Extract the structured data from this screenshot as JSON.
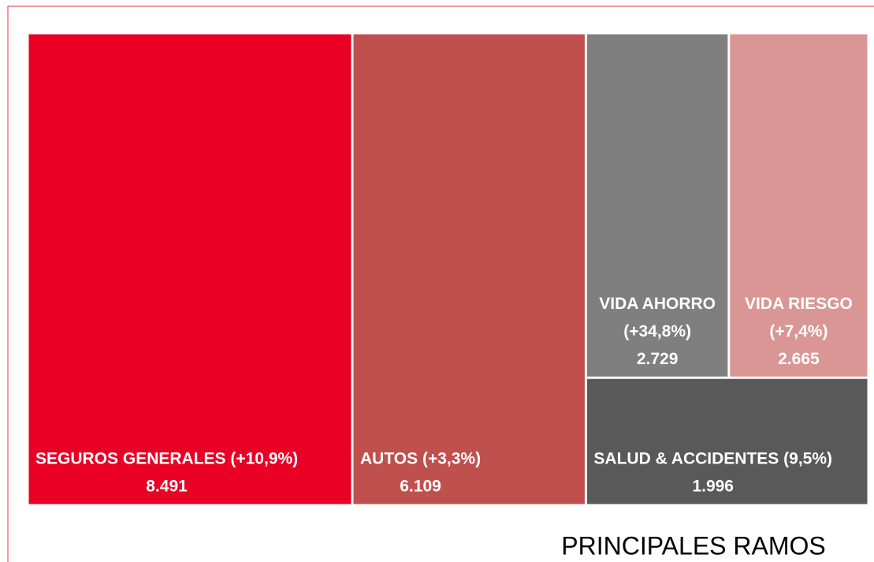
{
  "chart_data": {
    "type": "treemap",
    "title": "PRINCIPALES RAMOS",
    "categories": [
      "SEGUROS GENERALES (+10,9%)",
      "AUTOS (+3,3%)",
      "VIDA AHORRO (+34,8%)",
      "VIDA RIESGO (+7,4%)",
      "SALUD & ACCIDENTES (9,5%)"
    ],
    "values": [
      8491,
      6109,
      2729,
      2665,
      1996
    ],
    "value_labels": [
      "8.491",
      "6.109",
      "2.729",
      "2.665",
      "1.996"
    ],
    "colors": [
      "#ea0025",
      "#c0504d",
      "#7f7f7f",
      "#d99694",
      "#595959"
    ]
  }
}
